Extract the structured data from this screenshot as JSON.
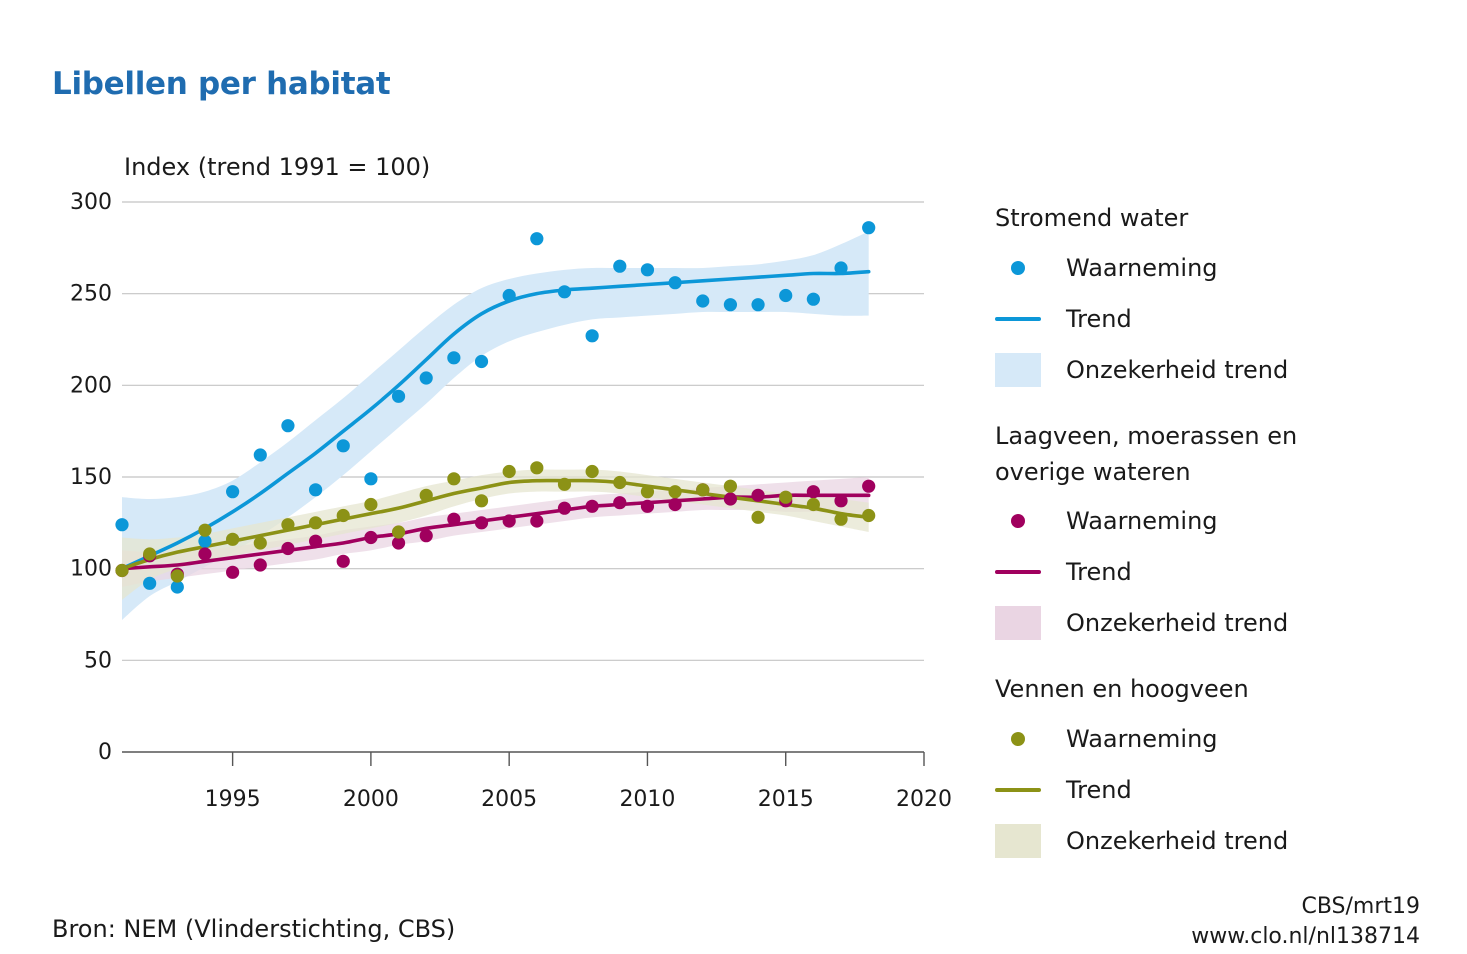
{
  "title": "Libellen per habitat",
  "ylabel": "Index (trend 1991 = 100)",
  "source": "Bron: NEM (Vlinderstichting, CBS)",
  "credit": [
    "CBS/mrt19",
    "www.clo.nl/nl138714"
  ],
  "chart_data": {
    "type": "line",
    "title": "Libellen per habitat",
    "ylabel": "Index (trend 1991 = 100)",
    "xlabel": "",
    "xlim": [
      1991,
      2020
    ],
    "ylim": [
      0,
      300
    ],
    "xticks": [
      1995,
      2000,
      2005,
      2010,
      2015,
      2020
    ],
    "yticks": [
      0,
      50,
      100,
      150,
      200,
      250,
      300
    ],
    "grid": true,
    "legend_position": "right",
    "groups": [
      {
        "name": "Stromend water",
        "color": "#0c97d8",
        "band_color": "#d6e9f8",
        "x": [
          1991,
          1992,
          1993,
          1994,
          1995,
          1996,
          1997,
          1998,
          1999,
          2000,
          2001,
          2002,
          2003,
          2004,
          2005,
          2006,
          2007,
          2008,
          2009,
          2010,
          2011,
          2012,
          2013,
          2014,
          2015,
          2016,
          2017,
          2018
        ],
        "observed": [
          124,
          92,
          90,
          115,
          142,
          162,
          178,
          143,
          167,
          149,
          194,
          204,
          215,
          213,
          249,
          280,
          251,
          227,
          265,
          263,
          256,
          246,
          244,
          244,
          249,
          247,
          264,
          286
        ],
        "trend": [
          100,
          107,
          114,
          122,
          131,
          141,
          152,
          163,
          175,
          187,
          200,
          214,
          228,
          239,
          246,
          250,
          252,
          253,
          254,
          255,
          256,
          257,
          258,
          259,
          260,
          261,
          261,
          262
        ],
        "lower": [
          72,
          85,
          93,
          101,
          109,
          118,
          128,
          139,
          151,
          164,
          177,
          190,
          204,
          216,
          224,
          229,
          233,
          236,
          237,
          238,
          239,
          240,
          240,
          240,
          240,
          239,
          238,
          238
        ],
        "upper": [
          139,
          138,
          139,
          142,
          148,
          158,
          169,
          181,
          193,
          206,
          219,
          232,
          244,
          253,
          258,
          261,
          263,
          264,
          264,
          264,
          264,
          264,
          265,
          266,
          268,
          271,
          277,
          284
        ]
      },
      {
        "name": "Laagveen, moerassen en overige wateren",
        "color": "#a0005e",
        "band_color": "#ead5e3",
        "x": [
          1991,
          1992,
          1993,
          1994,
          1995,
          1996,
          1997,
          1998,
          1999,
          2000,
          2001,
          2002,
          2003,
          2004,
          2005,
          2006,
          2007,
          2008,
          2009,
          2010,
          2011,
          2012,
          2013,
          2014,
          2015,
          2016,
          2017,
          2018
        ],
        "observed": [
          99,
          107,
          97,
          108,
          98,
          102,
          111,
          115,
          104,
          117,
          114,
          118,
          127,
          125,
          126,
          126,
          133,
          134,
          136,
          134,
          135,
          143,
          138,
          140,
          137,
          142,
          137,
          145
        ],
        "trend": [
          100,
          101,
          102,
          104,
          106,
          108,
          110,
          112,
          114,
          117,
          119,
          122,
          124,
          126,
          128,
          130,
          132,
          134,
          135,
          136,
          137,
          138,
          139,
          139,
          140,
          140,
          140,
          140
        ],
        "lower": [
          90,
          93,
          95,
          97,
          99,
          101,
          103,
          105,
          108,
          110,
          113,
          115,
          118,
          120,
          122,
          124,
          126,
          128,
          129,
          130,
          131,
          132,
          132,
          132,
          131,
          131,
          130,
          130
        ],
        "upper": [
          110,
          109,
          109,
          110,
          112,
          114,
          116,
          118,
          121,
          123,
          125,
          128,
          130,
          132,
          134,
          136,
          138,
          140,
          141,
          142,
          143,
          144,
          145,
          146,
          147,
          148,
          149,
          150
        ]
      },
      {
        "name": "Vennen en hoogveen",
        "color": "#8c9216",
        "band_color": "#e6e6d0",
        "x": [
          1991,
          1992,
          1993,
          1994,
          1995,
          1996,
          1997,
          1998,
          1999,
          2000,
          2001,
          2002,
          2003,
          2004,
          2005,
          2006,
          2007,
          2008,
          2009,
          2010,
          2011,
          2012,
          2013,
          2014,
          2015,
          2016,
          2017,
          2018
        ],
        "observed": [
          99,
          108,
          96,
          121,
          116,
          114,
          124,
          125,
          129,
          135,
          120,
          140,
          149,
          137,
          153,
          155,
          146,
          153,
          147,
          142,
          142,
          143,
          145,
          128,
          139,
          135,
          127,
          129
        ],
        "trend": [
          100,
          105,
          109,
          112,
          115,
          118,
          121,
          124,
          127,
          130,
          133,
          137,
          141,
          144,
          147,
          148,
          148,
          148,
          147,
          145,
          143,
          141,
          139,
          137,
          135,
          133,
          130,
          128
        ],
        "lower": [
          83,
          94,
          100,
          104,
          107,
          110,
          113,
          116,
          119,
          122,
          125,
          129,
          134,
          138,
          141,
          142,
          142,
          142,
          141,
          139,
          137,
          135,
          133,
          131,
          129,
          126,
          123,
          120
        ],
        "upper": [
          117,
          116,
          117,
          119,
          122,
          125,
          128,
          131,
          134,
          137,
          141,
          145,
          148,
          151,
          153,
          154,
          154,
          154,
          153,
          151,
          149,
          147,
          145,
          143,
          141,
          140,
          138,
          136
        ]
      }
    ]
  },
  "legend": {
    "groups": [
      {
        "header": "Stromend water",
        "observed_label": "Waarneming",
        "trend_label": "Trend",
        "band_label": "Onzekerheid trend"
      },
      {
        "header": "Laagveen, moerassen en overige wateren",
        "header_lines": [
          "Laagveen, moerassen en",
          "overige wateren"
        ],
        "observed_label": "Waarneming",
        "trend_label": "Trend",
        "band_label": "Onzekerheid trend"
      },
      {
        "header": "Vennen en hoogveen",
        "observed_label": "Waarneming",
        "trend_label": "Trend",
        "band_label": "Onzekerheid trend"
      }
    ]
  }
}
